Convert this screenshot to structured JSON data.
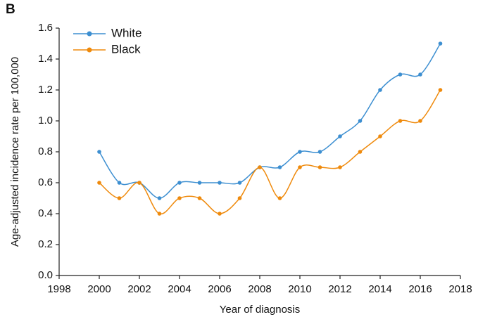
{
  "chart_data": {
    "type": "line",
    "panel_label": "B",
    "xlabel": "Year of diagnosis",
    "ylabel": "Age-adjusted incidence rate per 100,000",
    "x": [
      2000,
      2001,
      2002,
      2003,
      2004,
      2005,
      2006,
      2007,
      2008,
      2009,
      2010,
      2011,
      2012,
      2013,
      2014,
      2015,
      2016,
      2017
    ],
    "series": [
      {
        "name": "White",
        "color": "#3d8fd1",
        "values": [
          0.8,
          0.6,
          0.6,
          0.5,
          0.6,
          0.6,
          0.6,
          0.6,
          0.7,
          0.7,
          0.8,
          0.8,
          0.9,
          1.0,
          1.2,
          1.3,
          1.3,
          1.5
        ]
      },
      {
        "name": "Black",
        "color": "#ef8a0c",
        "values": [
          0.6,
          0.5,
          0.6,
          0.4,
          0.5,
          0.5,
          0.4,
          0.5,
          0.7,
          0.5,
          0.7,
          0.7,
          0.7,
          0.8,
          0.9,
          1.0,
          1.0,
          1.2
        ]
      }
    ],
    "xlim": [
      1998,
      2018
    ],
    "xticks": [
      1998,
      2000,
      2002,
      2004,
      2006,
      2008,
      2010,
      2012,
      2014,
      2016,
      2018
    ],
    "ylim": [
      0.0,
      1.6
    ],
    "yticks": [
      {
        "value": 0,
        "label": "0.0"
      },
      0.2,
      0.4,
      0.6,
      0.8,
      {
        "value": 1,
        "label": "1.0"
      },
      1.2,
      1.4,
      1.6
    ],
    "legend": "upper-left",
    "smooth": true
  }
}
